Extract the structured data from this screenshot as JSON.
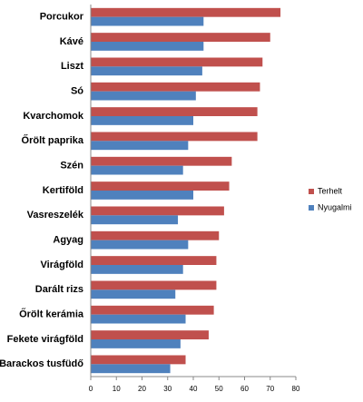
{
  "chart_data": {
    "type": "hbar",
    "categories": [
      "Porcukor",
      "Kávé",
      "Liszt",
      "Só",
      "Kvarchomok",
      "Őrölt paprika",
      "Szén",
      "Kertiföld",
      "Vasreszelék",
      "Agyag",
      "Virágföld",
      "Darált rizs",
      "Őrölt kerámia",
      "Fekete virágföld",
      "Barackos tusfüdő"
    ],
    "series": [
      {
        "name": "Terhelt",
        "color": "#c0504d",
        "values": [
          74,
          70,
          67,
          66,
          65,
          65,
          55,
          54,
          52,
          50,
          49,
          49,
          48,
          46,
          37
        ]
      },
      {
        "name": "Nyugalmi",
        "color": "#4f81bd",
        "values": [
          44,
          44,
          43.5,
          41,
          40,
          38,
          36,
          40,
          34,
          38,
          36,
          33,
          37,
          35,
          31
        ]
      }
    ],
    "xlim": [
      0,
      80
    ],
    "xticks": [
      0,
      10,
      20,
      30,
      40,
      50,
      60,
      70,
      80
    ],
    "grid": false,
    "legend": "right"
  }
}
